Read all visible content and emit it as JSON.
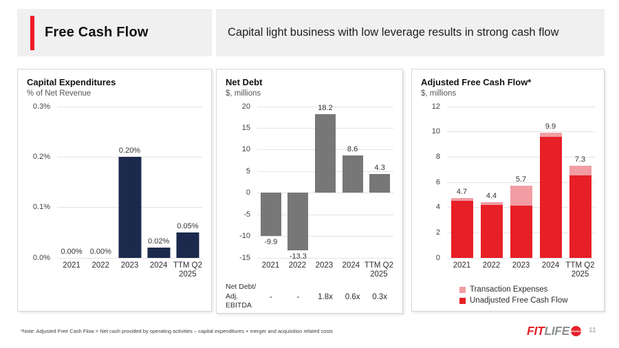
{
  "header": {
    "title": "Free Cash Flow",
    "subtitle": "Capital light business with low leverage results in strong cash flow"
  },
  "colors": {
    "accent_red": "#ee1c25",
    "navy_bar": "#1b2a4c",
    "gray_bar": "#777777",
    "bright_red_bar": "#e71f26",
    "pink_bar": "#f19da3",
    "panel_border": "#d6d6d6",
    "header_bg": "#f0f0f0"
  },
  "chart_data": [
    {
      "type": "bar",
      "title": "Capital Expenditures",
      "subtitle": "% of Net Revenue",
      "categories": [
        "2021",
        "2022",
        "2023",
        "2024",
        "TTM Q2\n2025"
      ],
      "values": [
        0.0,
        0.0,
        0.2,
        0.02,
        0.05
      ],
      "bar_labels": [
        "0.00%",
        "0.00%",
        "0.20%",
        "0.02%",
        "0.05%"
      ],
      "bar_color": "#1b2a4c",
      "ylim": [
        0,
        0.3
      ],
      "yticks": [
        {
          "v": 0.3,
          "t": "0.3%"
        },
        {
          "v": 0.2,
          "t": "0.2%"
        },
        {
          "v": 0.1,
          "t": "0.1%"
        },
        {
          "v": 0.0,
          "t": "0.0%"
        }
      ],
      "grid": true,
      "legend_position": "none"
    },
    {
      "type": "bar",
      "title": "Net Debt",
      "subtitle": "$, millions",
      "categories": [
        "2021",
        "2022",
        "2023",
        "2024",
        "TTM Q2\n2025"
      ],
      "values": [
        -9.9,
        -13.3,
        18.2,
        8.6,
        4.3
      ],
      "bar_labels": [
        "-9.9",
        "-13.3",
        "18.2",
        "8.6",
        "4.3"
      ],
      "bar_color": "#777777",
      "ylim": [
        -15,
        20
      ],
      "yticks": [
        {
          "v": 20,
          "t": "20"
        },
        {
          "v": 15,
          "t": "15"
        },
        {
          "v": 10,
          "t": "10"
        },
        {
          "v": 5,
          "t": "5"
        },
        {
          "v": 0,
          "t": "0"
        },
        {
          "v": -5,
          "t": "-5"
        },
        {
          "v": -10,
          "t": "-10"
        },
        {
          "v": -15,
          "t": "-15"
        }
      ],
      "grid": true,
      "legend_position": "none",
      "ratio_row": {
        "label_lines": [
          "Net Debt/",
          "Adj.",
          "EBITDA"
        ],
        "values": [
          "-",
          "-",
          "1.8x",
          "0.6x",
          "0.3x"
        ]
      }
    },
    {
      "type": "stacked-bar",
      "title": "Adjusted Free Cash Flow*",
      "subtitle": "$, millions",
      "categories": [
        "2021",
        "2022",
        "2023",
        "2024",
        "TTM Q2\n2025"
      ],
      "series": [
        {
          "name": "Unadjusted Free Cash Flow",
          "color": "#e71f26",
          "values": [
            4.5,
            4.2,
            4.1,
            9.6,
            6.5
          ]
        },
        {
          "name": "Transaction Expenses",
          "color": "#f19da3",
          "values": [
            0.2,
            0.2,
            1.6,
            0.3,
            0.8
          ]
        }
      ],
      "totals": [
        4.7,
        4.4,
        5.7,
        9.9,
        7.3
      ],
      "bar_labels": [
        "4.7",
        "4.4",
        "5.7",
        "9.9",
        "7.3"
      ],
      "ylim": [
        0,
        12
      ],
      "yticks": [
        {
          "v": 12,
          "t": "12"
        },
        {
          "v": 10,
          "t": "10"
        },
        {
          "v": 8,
          "t": "8"
        },
        {
          "v": 6,
          "t": "6"
        },
        {
          "v": 4,
          "t": "4"
        },
        {
          "v": 2,
          "t": "2"
        },
        {
          "v": 0,
          "t": "0"
        }
      ],
      "grid": true,
      "legend_position": "bottom",
      "legend": [
        {
          "label": "Transaction Expenses",
          "color": "#f19da3"
        },
        {
          "label": "Unadjusted Free Cash Flow",
          "color": "#e71f26"
        }
      ]
    }
  ],
  "footer": {
    "note": "*Note: Adjusted Free Cash Flow = Net cash provided by operating activities – capital expenditures + merger and acquisition related costs",
    "page_number": "11",
    "logo_fit": "FIT",
    "logo_life": "LIFE",
    "logo_badge": "BRANDS"
  }
}
